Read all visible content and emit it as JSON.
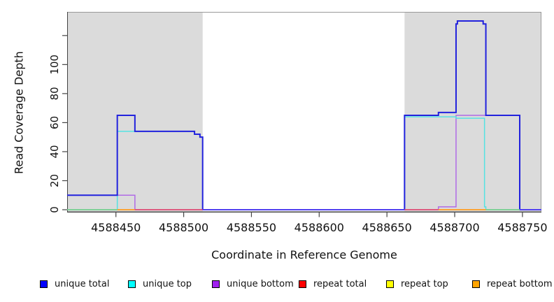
{
  "figure": {
    "xlabel": "Coordinate in Reference Genome",
    "ylabel": "Read Coverage Depth"
  },
  "legend": {
    "items": [
      {
        "label": "unique total",
        "color": "#0000FF"
      },
      {
        "label": "unique top",
        "color": "#00FFFF"
      },
      {
        "label": "unique bottom",
        "color": "#A020F0"
      },
      {
        "label": "repeat total",
        "color": "#FF0000"
      },
      {
        "label": "repeat top",
        "color": "#FFFF00"
      },
      {
        "label": "repeat bottom",
        "color": "#FFA500"
      }
    ]
  },
  "chart_data": {
    "type": "line",
    "subtype": "step-coverage",
    "title": "",
    "xlabel": "Coordinate in Reference Genome",
    "ylabel": "Read Coverage Depth",
    "xlim": [
      4588414,
      4588764
    ],
    "ylim": [
      0,
      136
    ],
    "grid": false,
    "legend_position": "bottom",
    "x_ticks": [
      4588450,
      4588500,
      4588550,
      4588600,
      4588650,
      4588700,
      4588750
    ],
    "y_ticks": [
      {
        "value": 0,
        "label": "0"
      },
      {
        "value": 20,
        "label": "20"
      },
      {
        "value": 40,
        "label": "40"
      },
      {
        "value": 60,
        "label": "60"
      },
      {
        "value": 80,
        "label": "80"
      },
      {
        "value": 100,
        "label": "100"
      },
      {
        "value": 120,
        "label": ""
      }
    ],
    "shaded_regions": [
      {
        "x1": 4588414,
        "x2": 4588514,
        "color": "#DBDBDB"
      },
      {
        "x1": 4588663,
        "x2": 4588764,
        "color": "#DBDBDB"
      }
    ],
    "series": [
      {
        "name": "unique total",
        "color": "#2222DD",
        "line_width": 2,
        "step_points": [
          [
            4588414,
            10
          ],
          [
            4588451,
            65
          ],
          [
            4588464,
            54
          ],
          [
            4588508,
            52
          ],
          [
            4588512,
            50
          ],
          [
            4588514,
            0
          ],
          [
            4588663,
            65
          ],
          [
            4588688,
            67
          ],
          [
            4588701,
            128
          ],
          [
            4588702,
            130
          ],
          [
            4588721,
            128
          ],
          [
            4588723,
            65
          ],
          [
            4588748,
            0
          ]
        ]
      },
      {
        "name": "unique top",
        "color": "#55E2E2",
        "line_width": 1.5,
        "step_points": [
          [
            4588414,
            0
          ],
          [
            4588451,
            54
          ],
          [
            4588508,
            52
          ],
          [
            4588512,
            50
          ],
          [
            4588514,
            0
          ],
          [
            4588663,
            64
          ],
          [
            4588701,
            63
          ],
          [
            4588722,
            2
          ],
          [
            4588723,
            0
          ]
        ]
      },
      {
        "name": "unique bottom",
        "color": "#B06BE6",
        "line_width": 1.5,
        "step_points": [
          [
            4588414,
            10
          ],
          [
            4588464,
            0
          ],
          [
            4588688,
            2
          ],
          [
            4588701,
            65
          ],
          [
            4588748,
            0
          ]
        ]
      },
      {
        "name": "repeat total",
        "color": "#FF0000",
        "line_width": 1.5,
        "step_points": [
          [
            4588414,
            0
          ]
        ]
      },
      {
        "name": "repeat top",
        "color": "#FFFF00",
        "line_width": 1.5,
        "step_points": [
          [
            4588414,
            0
          ]
        ]
      },
      {
        "name": "repeat bottom",
        "color": "#FFA500",
        "line_width": 1.5,
        "step_points": [
          [
            4588414,
            0
          ]
        ]
      }
    ],
    "zero_line_segments": [
      {
        "x1": 4588414,
        "x2": 4588451,
        "color": "#7CCE8E"
      },
      {
        "x1": 4588451,
        "x2": 4588464,
        "color": "#FF9D1F"
      },
      {
        "x1": 4588464,
        "x2": 4588514,
        "color": "#E04F72"
      },
      {
        "x1": 4588514,
        "x2": 4588663,
        "color": "#5A46F2"
      },
      {
        "x1": 4588663,
        "x2": 4588688,
        "color": "#E04F72"
      },
      {
        "x1": 4588688,
        "x2": 4588723,
        "color": "#FF9D1F"
      },
      {
        "x1": 4588723,
        "x2": 4588748,
        "color": "#7CCE8E"
      },
      {
        "x1": 4588748,
        "x2": 4588764,
        "color": "#5A46F2"
      }
    ]
  }
}
